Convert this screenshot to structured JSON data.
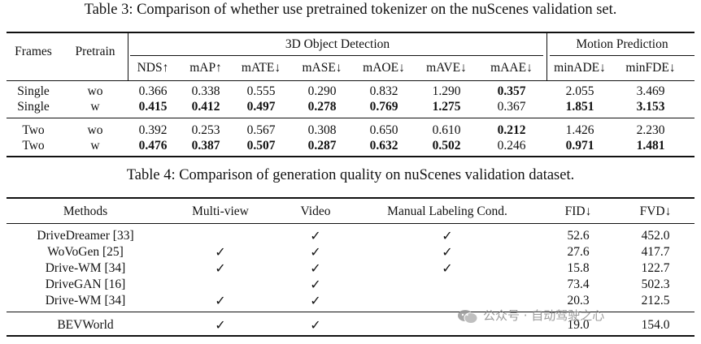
{
  "table3": {
    "caption": "Table 3: Comparison of whether use pretrained tokenizer on the nuScenes validation set.",
    "group_detection": "3D Object Detection",
    "group_motion": "Motion Prediction",
    "headers": [
      "Frames",
      "Pretrain",
      "NDS↑",
      "mAP↑",
      "mATE↓",
      "mASE↓",
      "mAOE↓",
      "mAVE↓",
      "mAAE↓",
      "minADE↓",
      "minFDE↓"
    ],
    "rows": [
      {
        "frames": "Single",
        "pretrain": "wo",
        "values": [
          "0.366",
          "0.338",
          "0.555",
          "0.290",
          "0.832",
          "1.290",
          "0.357",
          "2.055",
          "3.469"
        ],
        "bold": [
          false,
          false,
          false,
          false,
          false,
          false,
          true,
          false,
          false
        ]
      },
      {
        "frames": "Single",
        "pretrain": "w",
        "values": [
          "0.415",
          "0.412",
          "0.497",
          "0.278",
          "0.769",
          "1.275",
          "0.367",
          "1.851",
          "3.153"
        ],
        "bold": [
          true,
          true,
          true,
          true,
          true,
          true,
          false,
          true,
          true
        ]
      },
      {
        "frames": "Two",
        "pretrain": "wo",
        "values": [
          "0.392",
          "0.253",
          "0.567",
          "0.308",
          "0.650",
          "0.610",
          "0.212",
          "1.426",
          "2.230"
        ],
        "bold": [
          false,
          false,
          false,
          false,
          false,
          false,
          true,
          false,
          false
        ]
      },
      {
        "frames": "Two",
        "pretrain": "w",
        "values": [
          "0.476",
          "0.387",
          "0.507",
          "0.287",
          "0.632",
          "0.502",
          "0.246",
          "0.971",
          "1.481"
        ],
        "bold": [
          true,
          true,
          true,
          true,
          true,
          true,
          false,
          true,
          true
        ]
      }
    ]
  },
  "table4": {
    "caption": "Table 4: Comparison of generation quality on nuScenes validation dataset.",
    "headers": [
      "Methods",
      "Multi-view",
      "Video",
      "Manual Labeling Cond.",
      "FID↓",
      "FVD↓"
    ],
    "check_mark": "✓",
    "rows": [
      {
        "method": "DriveDreamer  [33]",
        "multiview": false,
        "video": true,
        "manual": true,
        "fid": "52.6",
        "fvd": "452.0"
      },
      {
        "method": "WoVoGen  [25]",
        "multiview": true,
        "video": true,
        "manual": true,
        "fid": "27.6",
        "fvd": "417.7"
      },
      {
        "method": "Drive-WM  [34]",
        "multiview": true,
        "video": true,
        "manual": true,
        "fid": "15.8",
        "fvd": "122.7"
      },
      {
        "method": "DriveGAN  [16]",
        "multiview": false,
        "video": true,
        "manual": false,
        "fid": "73.4",
        "fvd": "502.3"
      },
      {
        "method": "Drive-WM  [34]",
        "multiview": true,
        "video": true,
        "manual": false,
        "fid": "20.3",
        "fvd": "212.5"
      },
      {
        "method": "BEVWorld",
        "multiview": true,
        "video": true,
        "manual": false,
        "fid": "19.0",
        "fvd": "154.0"
      }
    ]
  },
  "watermark": {
    "text": "公众号 · 自动驾驶之心",
    "icon": "wechat-logo-icon"
  }
}
